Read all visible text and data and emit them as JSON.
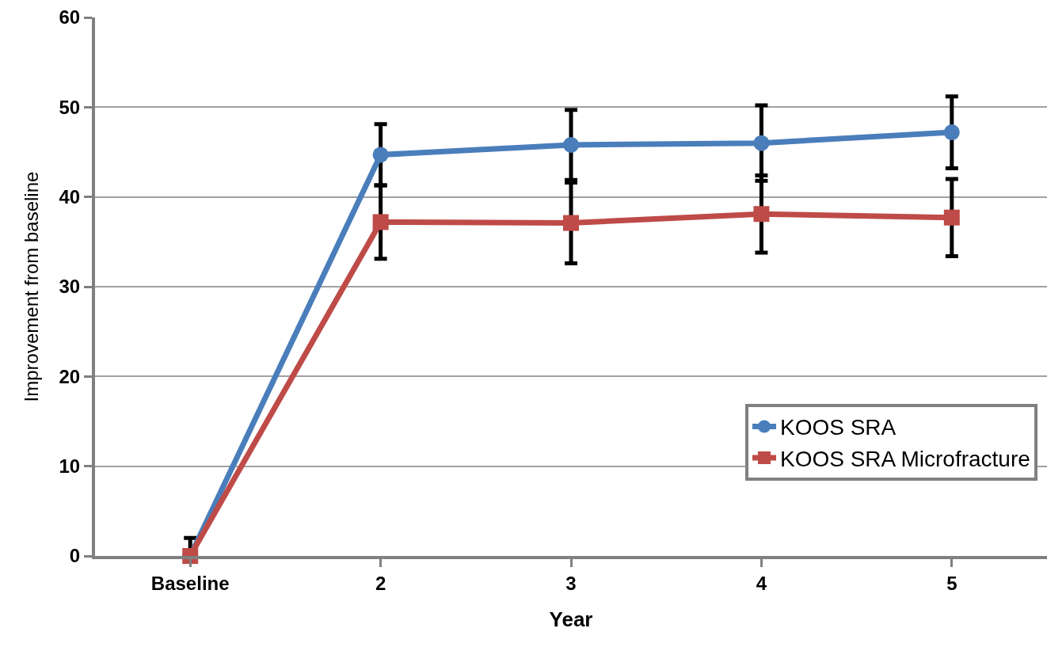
{
  "chart_data": {
    "type": "line",
    "xlabel": "Year",
    "ylabel": "Improvement from baseline",
    "categories": [
      "Baseline",
      "2",
      "3",
      "4",
      "5"
    ],
    "series": [
      {
        "name": "KOOS SRA",
        "color": "#4a7ebb",
        "marker": "circle",
        "values": [
          0,
          44.7,
          45.8,
          46.0,
          47.2
        ],
        "errors": [
          2,
          3.4,
          3.9,
          4.2,
          4.0
        ]
      },
      {
        "name": "KOOS SRA Microfracture",
        "color": "#be4b48",
        "marker": "square",
        "values": [
          0,
          37.2,
          37.1,
          38.1,
          37.7
        ],
        "errors": [
          null,
          4.1,
          4.5,
          4.3,
          4.3
        ]
      }
    ],
    "ylim": [
      0,
      60
    ],
    "yticks": [
      0,
      10,
      20,
      30,
      40,
      50,
      60
    ],
    "grid": "y",
    "legend": "bottom right",
    "line_style": "solid"
  }
}
